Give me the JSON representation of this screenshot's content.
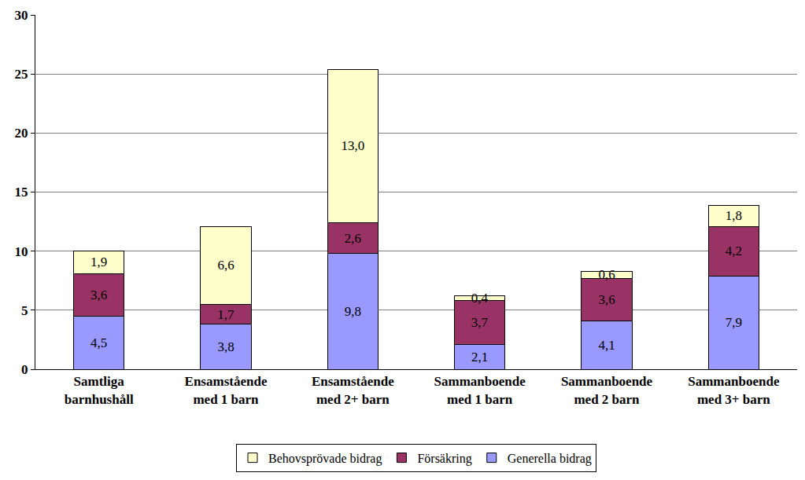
{
  "chart_data": {
    "type": "bar",
    "stacked": true,
    "data_labels": true,
    "grid": true,
    "legend": "bottom",
    "categories": [
      "Samtliga barnhushåll",
      "Ensamstående med 1 barn",
      "Ensamstående med 2+ barn",
      "Sammanboende med 1 barn",
      "Sammanboende med 2 barn",
      "Sammanboende med 3+ barn"
    ],
    "ylim": [
      0,
      30
    ],
    "yticks": [
      0,
      5,
      10,
      15,
      20,
      25,
      30
    ],
    "series": [
      {
        "name": "Generella bidrag",
        "color": "#9999ff",
        "values": [
          4.5,
          3.8,
          9.8,
          2.1,
          4.1,
          7.9
        ],
        "value_labels": [
          "4,5",
          "3,8",
          "9,8",
          "2,1",
          "4,1",
          "7,9"
        ]
      },
      {
        "name": "Försäkring",
        "color": "#993366",
        "values": [
          3.6,
          1.7,
          2.6,
          3.7,
          3.6,
          4.2
        ],
        "value_labels": [
          "3,6",
          "1,7",
          "2,6",
          "3,7",
          "3,6",
          "4,2"
        ]
      },
      {
        "name": "Behovsprövade bidrag",
        "color": "#ffffcc",
        "values": [
          1.9,
          6.6,
          13.0,
          0.4,
          0.6,
          1.8
        ],
        "value_labels": [
          "1,9",
          "6,6",
          "13,0",
          "0,4",
          "0,6",
          "1,8"
        ]
      }
    ]
  }
}
